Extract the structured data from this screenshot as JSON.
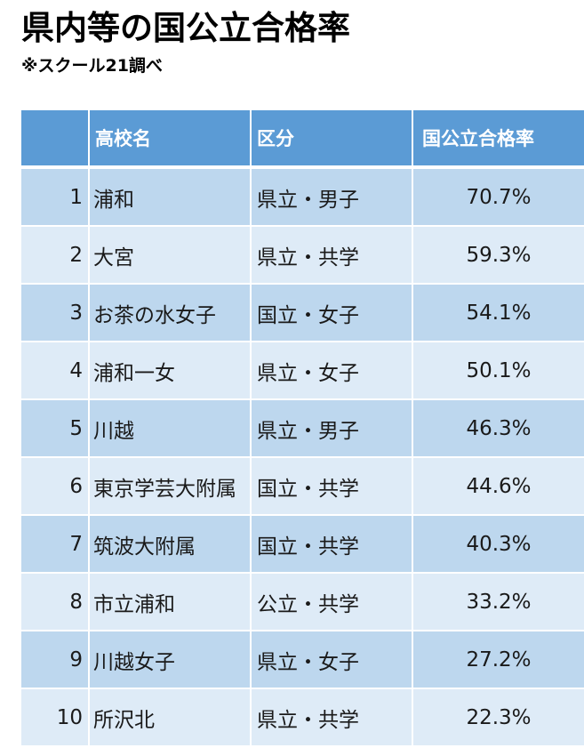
{
  "title": "県内等の国公立合格率",
  "subtitle": "※スクール21調べ",
  "table": {
    "headers": {
      "rank": "",
      "name": "高校名",
      "category": "区分",
      "rate": "国公立合格率"
    },
    "rows": [
      {
        "rank": "1",
        "name": "浦和",
        "category": "県立・男子",
        "rate": "70.7%"
      },
      {
        "rank": "2",
        "name": "大宮",
        "category": "県立・共学",
        "rate": "59.3%"
      },
      {
        "rank": "3",
        "name": "お茶の水女子",
        "category": "国立・女子",
        "rate": "54.1%"
      },
      {
        "rank": "4",
        "name": "浦和一女",
        "category": "県立・女子",
        "rate": "50.1%"
      },
      {
        "rank": "5",
        "name": "川越",
        "category": "県立・男子",
        "rate": "46.3%"
      },
      {
        "rank": "6",
        "name": "東京学芸大附属",
        "category": "国立・共学",
        "rate": "44.6%"
      },
      {
        "rank": "7",
        "name": "筑波大附属",
        "category": "国立・共学",
        "rate": "40.3%"
      },
      {
        "rank": "8",
        "name": "市立浦和",
        "category": "公立・共学",
        "rate": "33.2%"
      },
      {
        "rank": "9",
        "name": "川越女子",
        "category": "県立・女子",
        "rate": "27.2%"
      },
      {
        "rank": "10",
        "name": "所沢北",
        "category": "県立・共学",
        "rate": "22.3%"
      }
    ]
  },
  "colors": {
    "header_bg": "#5b9bd5",
    "row_dark": "#bdd7ee",
    "row_light": "#deebf7"
  }
}
